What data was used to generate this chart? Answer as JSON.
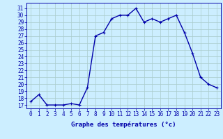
{
  "hours": [
    0,
    1,
    2,
    3,
    4,
    5,
    6,
    7,
    8,
    9,
    10,
    11,
    12,
    13,
    14,
    15,
    16,
    17,
    18,
    19,
    20,
    21,
    22,
    23
  ],
  "temperatures": [
    17.5,
    18.5,
    17,
    17,
    17,
    17.2,
    17,
    19.5,
    27,
    27.5,
    29.5,
    30,
    30,
    31,
    29,
    29.5,
    29,
    29.5,
    30,
    27.5,
    24.5,
    21,
    20,
    19.5
  ],
  "line_color": "#0000aa",
  "marker": "+",
  "marker_size": 3.5,
  "marker_lw": 0.8,
  "bg_color": "#cceeff",
  "grid_color": "#aacccc",
  "xlabel": "Graphe des températures (°c)",
  "tick_color": "#0000aa",
  "ylim_min": 16.5,
  "ylim_max": 31.8,
  "yticks": [
    17,
    18,
    19,
    20,
    21,
    22,
    23,
    24,
    25,
    26,
    27,
    28,
    29,
    30,
    31
  ],
  "xlim_min": -0.5,
  "xlim_max": 23.5,
  "xticks": [
    0,
    1,
    2,
    3,
    4,
    5,
    6,
    7,
    8,
    9,
    10,
    11,
    12,
    13,
    14,
    15,
    16,
    17,
    18,
    19,
    20,
    21,
    22,
    23
  ],
  "spine_color": "#0000aa",
  "line_width": 1.0,
  "tick_fontsize": 5.5,
  "xlabel_fontsize": 6.5
}
